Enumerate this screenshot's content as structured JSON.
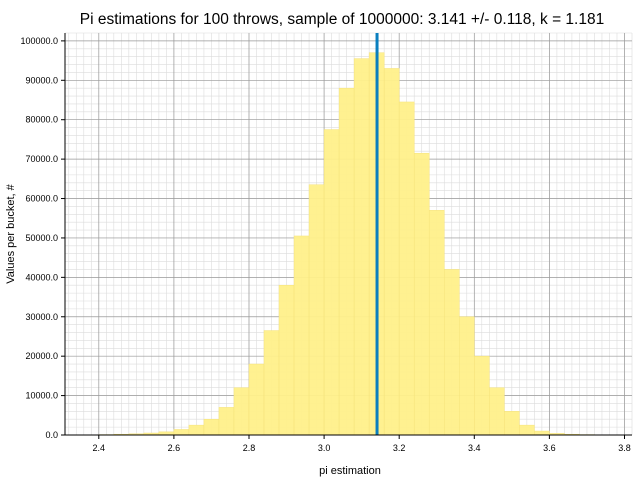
{
  "chart_data": {
    "type": "bar",
    "title": "Pi estimations for 100 throws, sample of 1000000: 3.141 +/- 0.118, k = 1.181",
    "xlabel": "pi estimation",
    "ylabel": "Values per bucket, #",
    "xlim": [
      2.31,
      3.82
    ],
    "ylim": [
      0,
      102000
    ],
    "xticks": [
      "2.4",
      "2.6",
      "2.8",
      "3.0",
      "3.2",
      "3.4",
      "3.6",
      "3.8"
    ],
    "yticks": [
      "0.0",
      "10000.0",
      "20000.0",
      "30000.0",
      "40000.0",
      "50000.0",
      "60000.0",
      "70000.0",
      "80000.0",
      "90000.0",
      "100000.0"
    ],
    "grid": true,
    "bar_color": "#fff08a",
    "bar_edge_color": "#f5e27a",
    "bin_width": 0.04,
    "bin_starts": [
      2.36,
      2.4,
      2.44,
      2.48,
      2.52,
      2.56,
      2.6,
      2.64,
      2.68,
      2.72,
      2.76,
      2.8,
      2.84,
      2.88,
      2.92,
      2.96,
      3.0,
      3.04,
      3.08,
      3.12,
      3.16,
      3.2,
      3.24,
      3.28,
      3.32,
      3.36,
      3.4,
      3.44,
      3.48,
      3.52,
      3.56,
      3.6,
      3.64,
      3.68,
      3.72,
      3.76
    ],
    "values": [
      50,
      100,
      200,
      300,
      500,
      800,
      1400,
      2500,
      4000,
      7000,
      12000,
      18000,
      26500,
      38000,
      50500,
      63500,
      77500,
      88000,
      95500,
      97000,
      93000,
      84500,
      71500,
      57000,
      42000,
      30000,
      20000,
      12000,
      6000,
      2500,
      1000,
      400,
      200,
      100,
      50,
      20
    ],
    "mean_line": {
      "x": 3.141,
      "color": "#0a7fbf"
    }
  }
}
